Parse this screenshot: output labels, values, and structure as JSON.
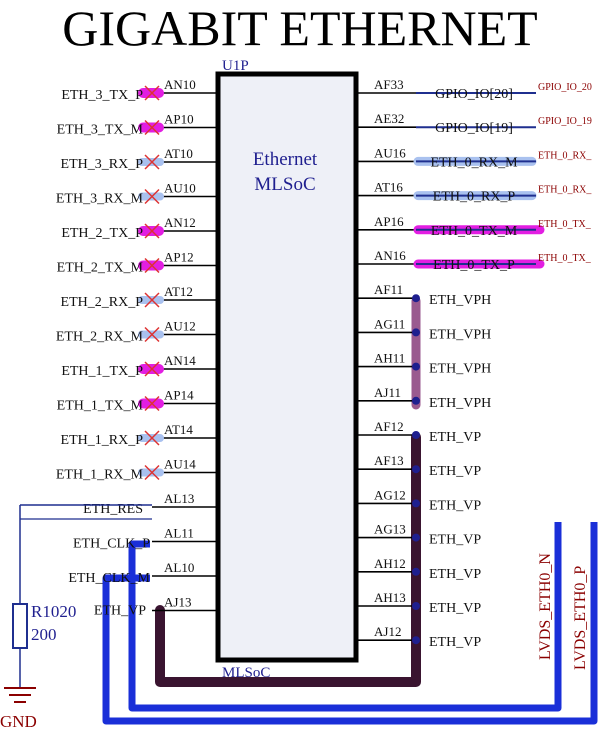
{
  "title": "GIGABIT ETHERNET",
  "component": {
    "designator": "U1P",
    "name_line1": "Ethernet",
    "name_line2": "MLSoC",
    "footer": "MLSoC"
  },
  "left_pins": [
    {
      "net": "ETH_3_TX_P",
      "pin": "AN10",
      "marker": "magenta"
    },
    {
      "net": "ETH_3_TX_M",
      "pin": "AP10",
      "marker": "magenta"
    },
    {
      "net": "ETH_3_RX_P",
      "pin": "AT10",
      "marker": "blue"
    },
    {
      "net": "ETH_3_RX_M",
      "pin": "AU10",
      "marker": "blue"
    },
    {
      "net": "ETH_2_TX_P",
      "pin": "AN12",
      "marker": "magenta"
    },
    {
      "net": "ETH_2_TX_M",
      "pin": "AP12",
      "marker": "magenta"
    },
    {
      "net": "ETH_2_RX_P",
      "pin": "AT12",
      "marker": "blue"
    },
    {
      "net": "ETH_2_RX_M",
      "pin": "AU12",
      "marker": "blue"
    },
    {
      "net": "ETH_1_TX_P",
      "pin": "AN14",
      "marker": "magenta"
    },
    {
      "net": "ETH_1_TX_M",
      "pin": "AP14",
      "marker": "magenta"
    },
    {
      "net": "ETH_1_RX_P",
      "pin": "AT14",
      "marker": "blue"
    },
    {
      "net": "ETH_1_RX_M",
      "pin": "AU14",
      "marker": "blue"
    },
    {
      "net": "ETH_RES",
      "pin": "AL13",
      "marker": "none"
    },
    {
      "net": "ETH_CLK_P",
      "pin": "AL11",
      "marker": "none"
    },
    {
      "net": "ETH_CLK_M",
      "pin": "AL10",
      "marker": "none"
    },
    {
      "net": "ETH_VP",
      "pin": "AJ13",
      "marker": "none"
    }
  ],
  "right_pins": [
    {
      "pin": "AF33",
      "net": "GPIO_IO[20]",
      "ext": "GPIO_IO_20",
      "style": "gpio"
    },
    {
      "pin": "AE32",
      "net": "GPIO_IO[19]",
      "ext": "GPIO_IO_19",
      "style": "gpio"
    },
    {
      "pin": "AU16",
      "net": "ETH_0_RX_M",
      "ext": "ETH_0_RX_",
      "style": "rx"
    },
    {
      "pin": "AT16",
      "net": "ETH_0_RX_P",
      "ext": "ETH_0_RX_",
      "style": "rx"
    },
    {
      "pin": "AP16",
      "net": "ETH_0_TX_M",
      "ext": "ETH_0_TX_",
      "style": "tx"
    },
    {
      "pin": "AN16",
      "net": "ETH_0_TX_P",
      "ext": "ETH_0_TX_",
      "style": "tx"
    },
    {
      "pin": "AF11",
      "net": "ETH_VPH",
      "ext": "",
      "style": "vph"
    },
    {
      "pin": "AG11",
      "net": "ETH_VPH",
      "ext": "",
      "style": "vph"
    },
    {
      "pin": "AH11",
      "net": "ETH_VPH",
      "ext": "",
      "style": "vph"
    },
    {
      "pin": "AJ11",
      "net": "ETH_VPH",
      "ext": "",
      "style": "vph"
    },
    {
      "pin": "AF12",
      "net": "ETH_VP",
      "ext": "",
      "style": "vp"
    },
    {
      "pin": "AF13",
      "net": "ETH_VP",
      "ext": "",
      "style": "vp"
    },
    {
      "pin": "AG12",
      "net": "ETH_VP",
      "ext": "",
      "style": "vp"
    },
    {
      "pin": "AG13",
      "net": "ETH_VP",
      "ext": "",
      "style": "vp"
    },
    {
      "pin": "AH12",
      "net": "ETH_VP",
      "ext": "",
      "style": "vp"
    },
    {
      "pin": "AH13",
      "net": "ETH_VP",
      "ext": "",
      "style": "vp"
    },
    {
      "pin": "AJ12",
      "net": "ETH_VP",
      "ext": "",
      "style": "vp"
    }
  ],
  "resistor": {
    "designator": "R1020",
    "value": "200"
  },
  "ground_label": "GND",
  "lvds": {
    "n": "LVDS_ETH0_N",
    "p": "LVDS_ETH0_P"
  },
  "colors": {
    "body_outline": "#000000",
    "body_fill": "#eef0f7",
    "magenta": "#e21ee2",
    "rx_highlight": "#a9c1ef",
    "vph_bus": "#9a5a8f",
    "vp_bus": "#3a1430",
    "lvds_bus": "#1a2fd8",
    "wire": "#1f2f8f",
    "net_red": "#8b0000"
  }
}
